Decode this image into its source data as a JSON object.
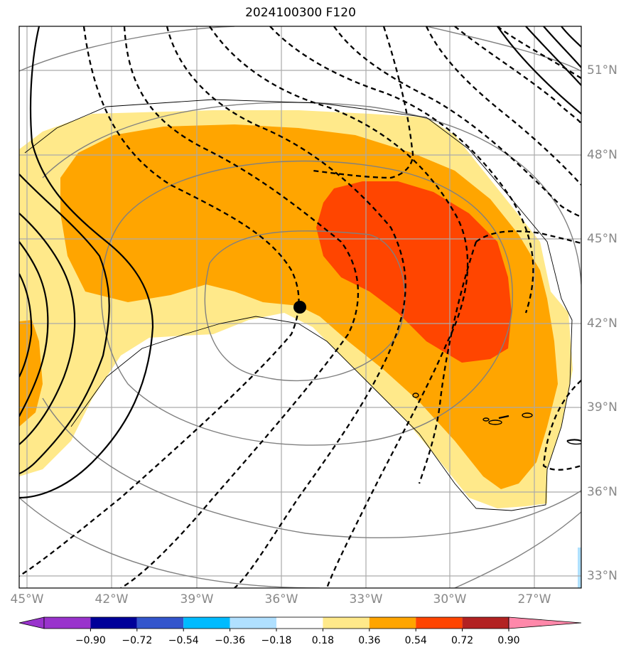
{
  "title": "2024100300 F120",
  "lon_labels": [
    "45°W",
    "42°W",
    "39°W",
    "36°W",
    "33°W",
    "30°W",
    "27°W"
  ],
  "lat_labels": [
    "51°N",
    "48°N",
    "45°N",
    "42°N",
    "39°N",
    "36°N",
    "33°N"
  ],
  "colorbar": {
    "ticks": [
      "−0.90",
      "−0.72",
      "−0.54",
      "−0.36",
      "−0.18",
      "0.18",
      "0.36",
      "0.54",
      "0.72",
      "0.90"
    ],
    "colors": [
      "#9933cc",
      "#000099",
      "#3355cc",
      "#00bbff",
      "#b0e0ff",
      "#ffffff",
      "#ffe98a",
      "#ffa500",
      "#ff4500",
      "#b22222",
      "#ff88aa"
    ]
  },
  "map": {
    "fill_colors": {
      "light": "#ffe98a",
      "orange": "#ffa500",
      "red": "#ff4500",
      "blue": "#b0e0ff"
    },
    "marker": "storm-center-dot"
  }
}
